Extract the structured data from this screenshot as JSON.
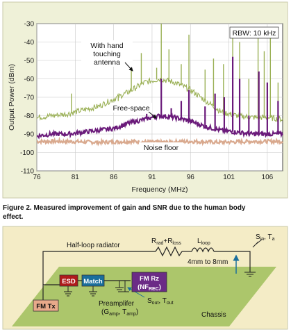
{
  "chart_data": {
    "type": "line",
    "xlabel": "Frequency (MHz)",
    "ylabel": "Output Power (dBm)",
    "xlim": [
      76,
      108
    ],
    "ylim": [
      -110,
      -30
    ],
    "xticks": [
      76,
      81,
      86,
      91,
      96,
      101,
      106
    ],
    "yticks": [
      -30,
      -40,
      -50,
      -60,
      -70,
      -80,
      -90,
      -100,
      -110
    ],
    "grid": true,
    "annotations": {
      "rbw": "RBW: 10 kHz",
      "hand_line1": "With hand",
      "hand_line2": "touching",
      "hand_line3": "antenna",
      "free_space": "Free-space",
      "noise_floor": "Noise floor"
    },
    "series": [
      {
        "label": "hand",
        "color": "#9ab055",
        "x": [
          76,
          78,
          80,
          82,
          84,
          86,
          88,
          90,
          92,
          94,
          96,
          98,
          100,
          102,
          104,
          106,
          108
        ],
        "y": [
          -81,
          -80,
          -79,
          -77,
          -75,
          -71,
          -67,
          -62,
          -60,
          -62,
          -66,
          -72,
          -78,
          -80,
          -81,
          -81,
          -82
        ],
        "spikes": [
          [
            80.5,
            -68
          ],
          [
            86.6,
            -72
          ],
          [
            88.3,
            -54
          ],
          [
            89.6,
            -46
          ],
          [
            91.6,
            -54
          ],
          [
            92.2,
            -30
          ],
          [
            93.2,
            -44
          ],
          [
            94.8,
            -52
          ],
          [
            95.8,
            -36
          ],
          [
            97.9,
            -55
          ],
          [
            99.0,
            -49
          ],
          [
            100.3,
            -52
          ],
          [
            101.5,
            -35
          ],
          [
            102.4,
            -40
          ],
          [
            103.6,
            -60
          ],
          [
            104.8,
            -36
          ],
          [
            105.6,
            -45
          ],
          [
            106.4,
            -37
          ],
          [
            107.4,
            -62
          ]
        ]
      },
      {
        "label": "free",
        "color": "#6a1a7a",
        "x": [
          76,
          78,
          80,
          82,
          84,
          86,
          88,
          90,
          92,
          94,
          96,
          98,
          100,
          102,
          104,
          106,
          108
        ],
        "y": [
          -91,
          -90,
          -90,
          -89,
          -88,
          -87,
          -84,
          -82,
          -80,
          -81,
          -83,
          -86,
          -88,
          -89,
          -90,
          -90,
          -90
        ],
        "spikes": [
          [
            86.6,
            -86
          ],
          [
            88.7,
            -83
          ],
          [
            90.3,
            -79
          ],
          [
            92.2,
            -60
          ],
          [
            93.5,
            -76
          ],
          [
            94.8,
            -72
          ],
          [
            95.8,
            -66
          ],
          [
            97.9,
            -75
          ],
          [
            99.2,
            -68
          ],
          [
            100.4,
            -70
          ],
          [
            101.5,
            -48
          ],
          [
            102.4,
            -60
          ],
          [
            103.6,
            -80
          ],
          [
            104.9,
            -56
          ],
          [
            106.0,
            -62
          ],
          [
            107.4,
            -72
          ]
        ]
      },
      {
        "label": "noise",
        "color": "#d9a98e",
        "x": [
          76,
          80,
          84,
          88,
          92,
          96,
          100,
          104,
          108
        ],
        "y": [
          -94,
          -94,
          -94.5,
          -94,
          -94.5,
          -94,
          -94.5,
          -94,
          -94
        ],
        "spikes": []
      }
    ]
  },
  "caption": {
    "line1": "Figure 2. Measured improvement of gain and SNR due to the human body",
    "line2": "effect."
  },
  "circuit": {
    "half_loop": "Half-loop radiator",
    "rrad": "R",
    "rrad_sub": "rad",
    "plus": "+R",
    "rloss_sub": "loss",
    "lloop": "L",
    "lloop_sub": "loop",
    "dist": "4mm to 8mm",
    "sin": "S",
    "sin_sub": "in",
    "ta": ", T",
    "ta_sub": "a",
    "esd": "ESD",
    "match": "Match",
    "fmrz1": "FM Rz",
    "fmrz2a": "(NF",
    "fmrz2_sub": "REC",
    "fmrz2b": ")",
    "fmtx": "FM Tx",
    "preamp1": "Preamplifer",
    "preamp2a": "(G",
    "preamp2_sub1": "amp",
    "preamp2b": ", T",
    "preamp2_sub2": "amp",
    "preamp2c": ")",
    "sout": "S",
    "sout_sub": "out",
    "tout": ", T",
    "tout_sub": "out",
    "chassis": "Chassis"
  },
  "colors": {
    "chart_bg": "#eff1d8",
    "circuit_bg": "#f4ecc6",
    "chassis": "#9fc05a",
    "esd": "#b01b1b",
    "match": "#1a6e9c",
    "fmrz": "#6b2b86",
    "fmtx": "#e8a98a"
  }
}
